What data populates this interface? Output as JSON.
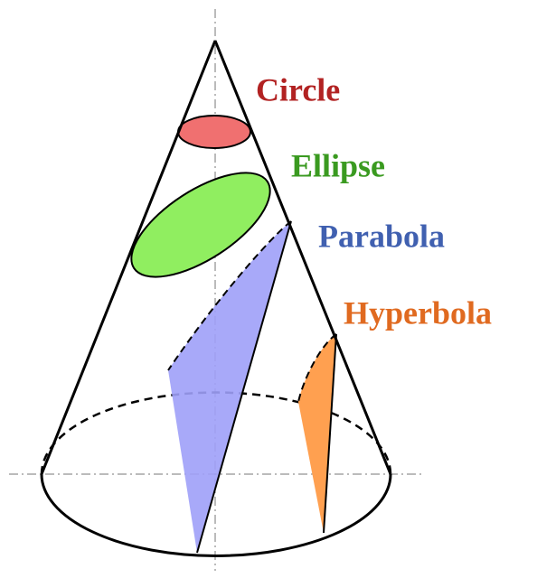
{
  "labels": {
    "circle": "Circle",
    "ellipse": "Ellipse",
    "parabola": "Parabola",
    "hyperbola": "Hyperbola"
  }
}
